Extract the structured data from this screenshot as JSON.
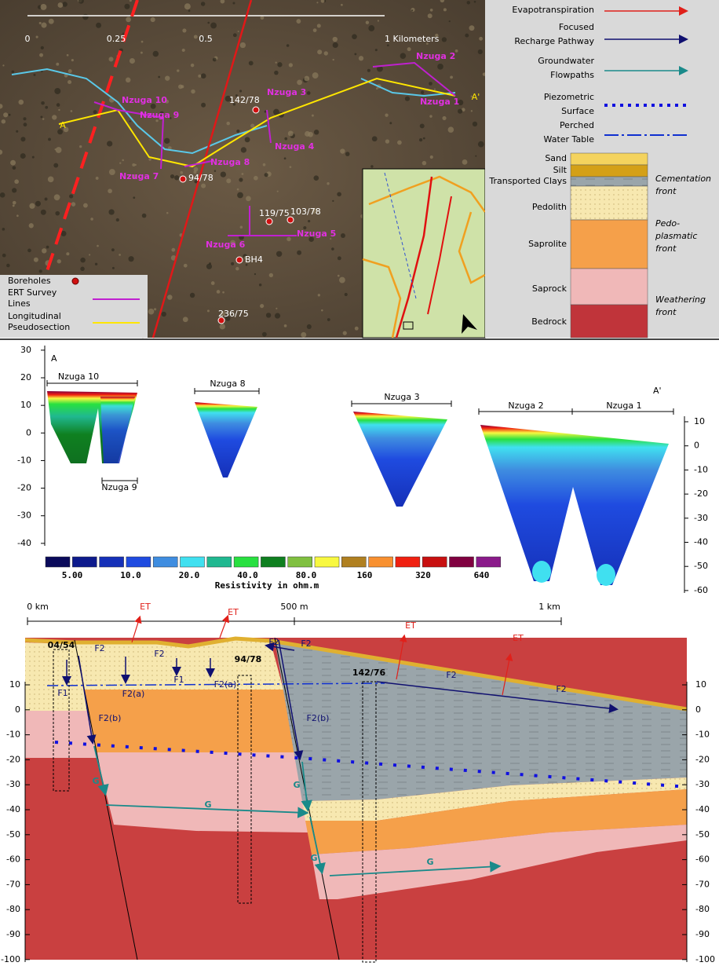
{
  "map": {
    "scale_labels": [
      "0",
      "0.25",
      "0.5",
      "1 Kilometers"
    ],
    "section_ends": [
      "A",
      "A'"
    ],
    "ert_lines": [
      "Nzuga 1",
      "Nzuga 2",
      "Nzuga 3",
      "Nzuga 4",
      "Nzuga 5",
      "Nzuga 6",
      "Nzuga 7",
      "Nzuga 8",
      "Nzuga 9",
      "Nzuga 10"
    ],
    "boreholes": [
      "142/78",
      "94/78",
      "119/75",
      "103/78",
      "BH4",
      "236/75"
    ],
    "legend": [
      [
        "Boreholes"
      ],
      [
        "ERT Survey",
        "Lines"
      ],
      [
        "Longitudinal",
        "Pseudosection"
      ]
    ]
  },
  "legend": {
    "processes": [
      [
        "Evapotranspiration"
      ],
      [
        "Focused",
        "Recharge Pathway"
      ],
      [
        "Groundwater",
        "Flowpaths"
      ],
      [
        "Piezometric",
        "Surface"
      ],
      [
        "Perched",
        "Water Table"
      ]
    ],
    "layers": [
      "Sand",
      "Silt",
      "Transported Clays",
      "Pedolith",
      "Saprolite",
      "Saprock",
      "Bedrock"
    ],
    "fronts": [
      [
        "Cementation",
        "front"
      ],
      [
        "Pedo-",
        "plasmatic",
        "front"
      ],
      [
        "Weathering",
        "front"
      ]
    ]
  },
  "ert": {
    "ends": [
      "A",
      "A'"
    ],
    "left_axis": [
      30,
      20,
      10,
      0,
      -10,
      -20,
      -30,
      -40
    ],
    "right_axis": [
      10,
      0,
      -10,
      -20,
      -30,
      -40,
      -50,
      -60
    ],
    "lines": [
      "Nzuga 10",
      "Nzuga 9",
      "Nzuga 8",
      "Nzuga 3",
      "Nzuga 2",
      "Nzuga 1"
    ],
    "scale_labels": [
      "5.00",
      "10.0",
      "20.0",
      "40.0",
      "80.0",
      "160",
      "320",
      "640"
    ],
    "scale_title": "Resistivity in ohm.m"
  },
  "section": {
    "distance": [
      "0 km",
      "500 m",
      "1 km"
    ],
    "axis": [
      10,
      0,
      -10,
      -20,
      -30,
      -40,
      -50,
      -60,
      -70,
      -80,
      -90,
      -100
    ],
    "boreholes": [
      "04/54",
      "94/78",
      "142/76"
    ],
    "et_labels": [
      "ET",
      "ET",
      "ET",
      "ET"
    ],
    "recharge_labels": [
      "F2",
      "F2",
      "F2",
      "F2",
      "F2",
      "F2",
      "F1",
      "F1",
      "F2(a)",
      "F2(a)",
      "F2(b)",
      "F2(b)"
    ],
    "flow_labels": [
      "G",
      "G",
      "G",
      "G",
      "G"
    ]
  }
}
